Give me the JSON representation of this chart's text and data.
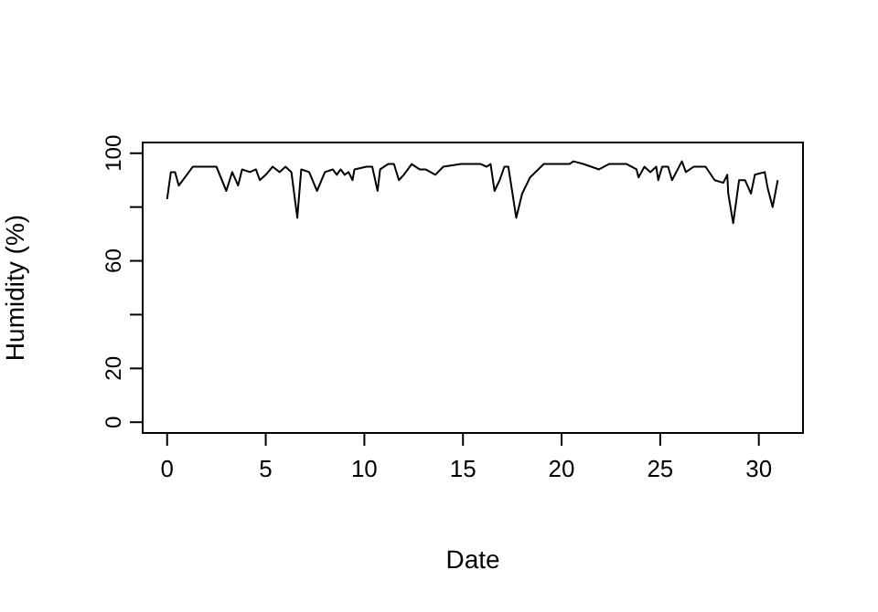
{
  "chart_data": {
    "type": "line",
    "xlabel": "Date",
    "ylabel": "Humidity (%)",
    "x": [
      0,
      0.19,
      0.4,
      0.59,
      1.0,
      1.3,
      2.4,
      2.5,
      3.0,
      3.3,
      3.6,
      3.8,
      4.2,
      4.5,
      4.7,
      5.0,
      5.35,
      5.7,
      6.0,
      6.3,
      6.6,
      6.8,
      7.2,
      7.6,
      8.0,
      8.4,
      8.6,
      8.8,
      9.0,
      9.2,
      9.4,
      9.5,
      10.1,
      10.4,
      10.67,
      10.8,
      11.2,
      11.5,
      11.75,
      12.0,
      12.4,
      12.8,
      13.1,
      13.6,
      14.0,
      14.9,
      15.9,
      16.2,
      16.4,
      16.6,
      16.86,
      17.1,
      17.3,
      17.7,
      18.0,
      18.4,
      19.1,
      19.9,
      20.4,
      20.6,
      21.1,
      21.9,
      22.4,
      23.3,
      23.8,
      23.9,
      24.2,
      24.5,
      24.8,
      24.9,
      25.1,
      25.4,
      25.6,
      26.1,
      26.3,
      26.7,
      27.3,
      27.76,
      28.2,
      28.4,
      28.45,
      28.7,
      29.0,
      29.3,
      29.6,
      29.8,
      30.3,
      30.45,
      30.7,
      30.96
    ],
    "series": [
      {
        "color": "#000000",
        "values": [
          83,
          93,
          93,
          88,
          92,
          95,
          95,
          95,
          86,
          93,
          88,
          94,
          93,
          94,
          90,
          92,
          95,
          93,
          95,
          93,
          76,
          94,
          93,
          86,
          93,
          94,
          92,
          94,
          92,
          93,
          90,
          94,
          95,
          95,
          86,
          94,
          96,
          96,
          90,
          92,
          96,
          94,
          94,
          92,
          95,
          96,
          96,
          95,
          96,
          86,
          90,
          95,
          95,
          76,
          85,
          91,
          96,
          96,
          96,
          97,
          96,
          94,
          96,
          96,
          94,
          91,
          95,
          93,
          95,
          90,
          95,
          95,
          90,
          97,
          93,
          95,
          95,
          90,
          89,
          92,
          85,
          74,
          90,
          90,
          85,
          92,
          93,
          87,
          80,
          90
        ]
      }
    ],
    "xlim": [
      -1.24,
      32.24
    ],
    "ylim": [
      -4,
      104
    ],
    "xticks": [
      0,
      5,
      10,
      15,
      20,
      25,
      30
    ],
    "yticks": [
      0,
      20,
      {
        "value": 40,
        "label": null
      },
      60,
      {
        "value": 80,
        "label": null
      },
      100
    ],
    "marker": "none",
    "line_style": "solid",
    "grid": false,
    "legend": false
  }
}
